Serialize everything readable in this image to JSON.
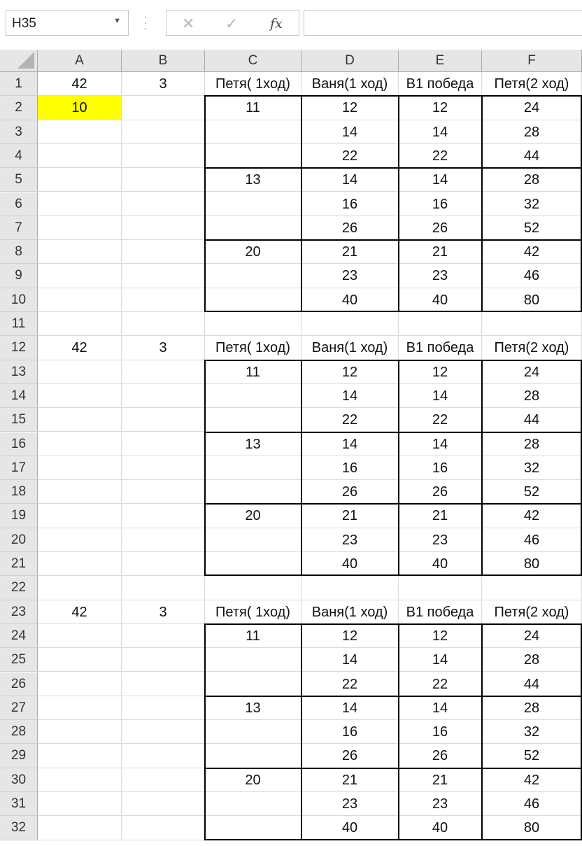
{
  "name_box": {
    "value": "H35",
    "dropdown_icon": "chevron-down-icon"
  },
  "formula_bar": {
    "cancel_icon": "✕",
    "enter_icon": "✓",
    "fx_label": "fx",
    "value": ""
  },
  "columns": [
    "A",
    "B",
    "C",
    "D",
    "E",
    "F"
  ],
  "rows": [
    "1",
    "2",
    "3",
    "4",
    "5",
    "6",
    "7",
    "8",
    "9",
    "10",
    "11",
    "12",
    "13",
    "14",
    "15",
    "16",
    "17",
    "18",
    "19",
    "20",
    "21",
    "22",
    "23",
    "24",
    "25",
    "26",
    "27",
    "28",
    "29",
    "30",
    "31",
    "32"
  ],
  "highlight_color": "#ffff00",
  "cells": [
    [
      "42",
      "3",
      "Петя( 1ход)",
      "Ваня(1 ход)",
      "В1 победа",
      "Петя(2 ход)"
    ],
    [
      "10",
      "",
      "11",
      "12",
      "12",
      "24"
    ],
    [
      "",
      "",
      "",
      "14",
      "14",
      "28"
    ],
    [
      "",
      "",
      "",
      "22",
      "22",
      "44"
    ],
    [
      "",
      "",
      "13",
      "14",
      "14",
      "28"
    ],
    [
      "",
      "",
      "",
      "16",
      "16",
      "32"
    ],
    [
      "",
      "",
      "",
      "26",
      "26",
      "52"
    ],
    [
      "",
      "",
      "20",
      "21",
      "21",
      "42"
    ],
    [
      "",
      "",
      "",
      "23",
      "23",
      "46"
    ],
    [
      "",
      "",
      "",
      "40",
      "40",
      "80"
    ],
    [
      "",
      "",
      "",
      "",
      "",
      ""
    ],
    [
      "42",
      "3",
      "Петя( 1ход)",
      "Ваня(1 ход)",
      "В1 победа",
      "Петя(2 ход)"
    ],
    [
      "",
      "",
      "11",
      "12",
      "12",
      "24"
    ],
    [
      "",
      "",
      "",
      "14",
      "14",
      "28"
    ],
    [
      "",
      "",
      "",
      "22",
      "22",
      "44"
    ],
    [
      "",
      "",
      "13",
      "14",
      "14",
      "28"
    ],
    [
      "",
      "",
      "",
      "16",
      "16",
      "32"
    ],
    [
      "",
      "",
      "",
      "26",
      "26",
      "52"
    ],
    [
      "",
      "",
      "20",
      "21",
      "21",
      "42"
    ],
    [
      "",
      "",
      "",
      "23",
      "23",
      "46"
    ],
    [
      "",
      "",
      "",
      "40",
      "40",
      "80"
    ],
    [
      "",
      "",
      "",
      "",
      "",
      ""
    ],
    [
      "42",
      "3",
      "Петя( 1ход)",
      "Ваня(1 ход)",
      "В1 победа",
      "Петя(2 ход)"
    ],
    [
      "",
      "",
      "11",
      "12",
      "12",
      "24"
    ],
    [
      "",
      "",
      "",
      "14",
      "14",
      "28"
    ],
    [
      "",
      "",
      "",
      "22",
      "22",
      "44"
    ],
    [
      "",
      "",
      "13",
      "14",
      "14",
      "28"
    ],
    [
      "",
      "",
      "",
      "16",
      "16",
      "32"
    ],
    [
      "",
      "",
      "",
      "26",
      "26",
      "52"
    ],
    [
      "",
      "",
      "20",
      "21",
      "21",
      "42"
    ],
    [
      "",
      "",
      "",
      "23",
      "23",
      "46"
    ],
    [
      "",
      "",
      "",
      "40",
      "40",
      "80"
    ]
  ]
}
